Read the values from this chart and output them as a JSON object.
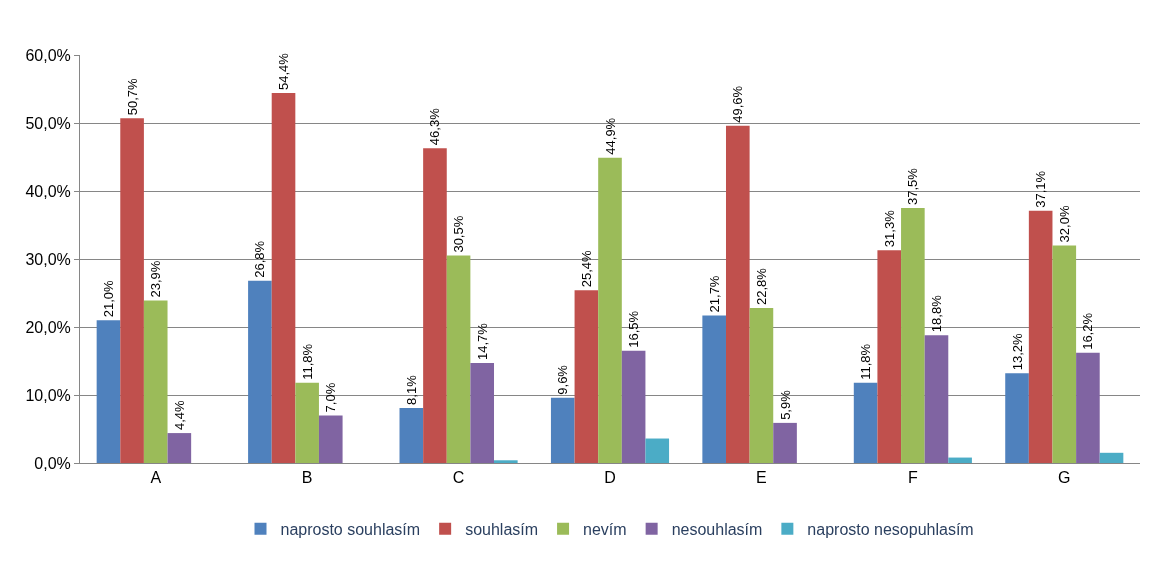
{
  "chart_data": {
    "type": "bar",
    "categories": [
      "A",
      "B",
      "C",
      "D",
      "E",
      "F",
      "G"
    ],
    "series": [
      {
        "name": "naprosto souhlasím",
        "color": "#4f81bd",
        "values": [
          21.0,
          26.8,
          8.1,
          9.6,
          21.7,
          11.8,
          13.2
        ],
        "value_labels": [
          "21,0%",
          "26,8%",
          "8,1%",
          "9,6%",
          "21,7%",
          "11,8%",
          "13,2%"
        ]
      },
      {
        "name": "souhlasím",
        "color": "#c0504d",
        "values": [
          50.7,
          54.4,
          46.3,
          25.4,
          49.6,
          31.3,
          37.1
        ],
        "value_labels": [
          "50,7%",
          "54,4%",
          "46,3%",
          "25,4%",
          "49,6%",
          "31,3%",
          "37,1%"
        ]
      },
      {
        "name": "nevím",
        "color": "#9bbb59",
        "values": [
          23.9,
          11.8,
          30.5,
          44.9,
          22.8,
          37.5,
          32.0
        ],
        "value_labels": [
          "23,9%",
          "11,8%",
          "30,5%",
          "44,9%",
          "22,8%",
          "37,5%",
          "32,0%"
        ]
      },
      {
        "name": "nesouhlasím",
        "color": "#8064a2",
        "values": [
          4.4,
          7.0,
          14.7,
          16.5,
          5.9,
          18.8,
          16.2
        ],
        "value_labels": [
          "4,4%",
          "7,0%",
          "14,7%",
          "16,5%",
          "5,9%",
          "18,8%",
          "16,2%"
        ]
      },
      {
        "name": "naprosto nesopuhlasím",
        "color": "#4bacc6",
        "values": [
          0,
          0,
          0.4,
          3.6,
          0,
          0.8,
          1.5
        ],
        "value_labels": [
          null,
          null,
          null,
          null,
          null,
          null,
          null
        ]
      }
    ],
    "ylim": [
      0,
      60
    ],
    "yticks": [
      {
        "value": 0,
        "label": "0,0%"
      },
      {
        "value": 10,
        "label": "10,0%"
      },
      {
        "value": 20,
        "label": "20,0%"
      },
      {
        "value": 30,
        "label": "30,0%"
      },
      {
        "value": 40,
        "label": "40,0%"
      },
      {
        "value": 50,
        "label": "50,0%"
      },
      {
        "value": 60,
        "label": "60,0%"
      }
    ],
    "grid": "y",
    "legend": "bottom"
  }
}
